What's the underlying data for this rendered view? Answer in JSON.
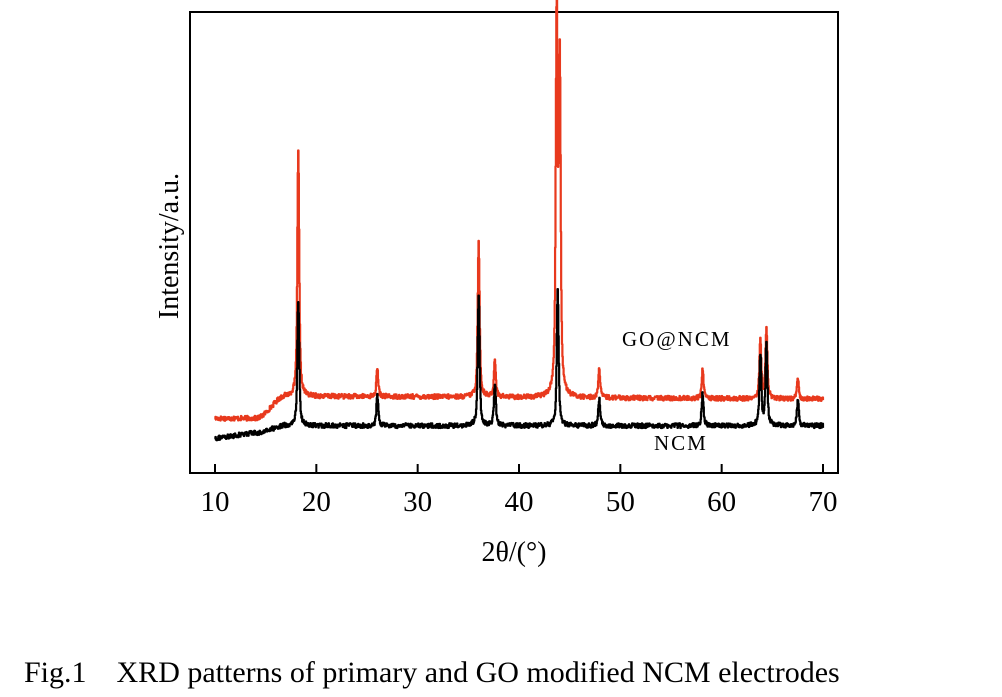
{
  "chart_data": {
    "type": "line",
    "xlabel": "2θ/(°)",
    "ylabel": "Intensity/a.u.",
    "xlim": [
      10,
      70
    ],
    "x_ticks": [
      10,
      20,
      30,
      40,
      50,
      60,
      70
    ],
    "y_ticks_shown": false,
    "grid": false,
    "legend": "none",
    "series": [
      {
        "name": "GO@NCM",
        "color": "#e8391d",
        "baseline_rise": [
          [
            10,
            4.0
          ],
          [
            14,
            4.0
          ],
          [
            17,
            8.5
          ],
          [
            70,
            8.0
          ]
        ],
        "peaks": [
          {
            "x": 18.2,
            "y": 58.5
          },
          {
            "x": 26.0,
            "y": 14.0
          },
          {
            "x": 36.0,
            "y": 40.0
          },
          {
            "x": 37.6,
            "y": 16.0
          },
          {
            "x": 43.7,
            "y": 85.0
          },
          {
            "x": 44.0,
            "y": 75.0
          },
          {
            "x": 47.9,
            "y": 14.0
          },
          {
            "x": 58.1,
            "y": 14.0
          },
          {
            "x": 63.8,
            "y": 20.0
          },
          {
            "x": 64.4,
            "y": 22.0
          },
          {
            "x": 67.5,
            "y": 12.0
          }
        ]
      },
      {
        "name": "NCM",
        "color": "#000000",
        "baseline_rise": [
          [
            10,
            0.0
          ],
          [
            14,
            1.0
          ],
          [
            17,
            2.5
          ],
          [
            70,
            2.5
          ]
        ],
        "peaks": [
          {
            "x": 18.2,
            "y": 28.0
          },
          {
            "x": 26.0,
            "y": 8.5
          },
          {
            "x": 36.0,
            "y": 29.0
          },
          {
            "x": 37.6,
            "y": 11.0
          },
          {
            "x": 43.8,
            "y": 30.0
          },
          {
            "x": 47.9,
            "y": 8.0
          },
          {
            "x": 58.1,
            "y": 9.0
          },
          {
            "x": 63.8,
            "y": 17.0
          },
          {
            "x": 64.4,
            "y": 19.0
          },
          {
            "x": 67.5,
            "y": 7.5
          }
        ]
      }
    ],
    "caption": "Fig.1    XRD patterns of primary and GO modified NCM electrodes"
  }
}
